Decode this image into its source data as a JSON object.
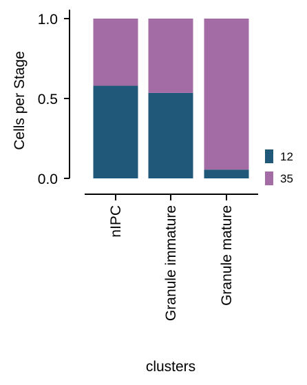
{
  "chart_data": {
    "type": "bar",
    "stacked": true,
    "categories": [
      "nIPC",
      "Granule immature",
      "Granule mature"
    ],
    "series": [
      {
        "name": "12",
        "color": "#1f5878",
        "values": [
          0.58,
          0.535,
          0.055
        ]
      },
      {
        "name": "35",
        "color": "#a46ca5",
        "values": [
          0.42,
          0.465,
          0.945
        ]
      }
    ],
    "xlabel": "clusters",
    "ylabel": "Cells per Stage",
    "ylim": [
      0,
      1.0
    ],
    "yticks": [
      0.0,
      0.5,
      1.0
    ],
    "ytick_labels": [
      "0.0",
      "0.5",
      "1.0"
    ],
    "legend_position": "right",
    "grid": false
  }
}
